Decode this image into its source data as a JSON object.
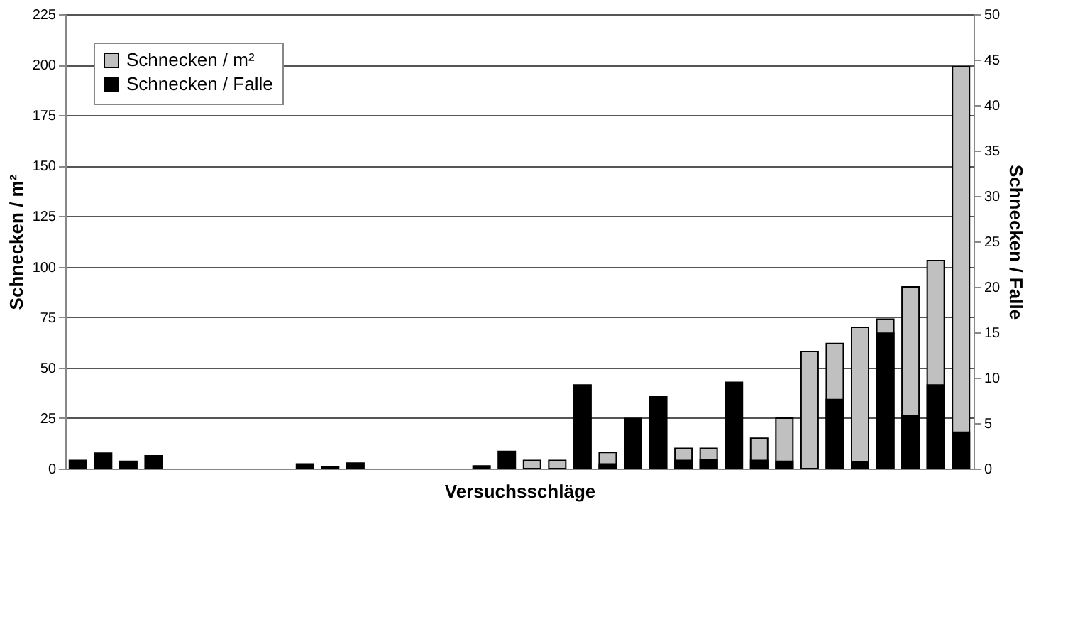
{
  "chart_data": {
    "type": "bar",
    "xlabel": "Versuchsschläge",
    "ylabel": "Schnecken / m²",
    "y2label": "Schnecken / Falle",
    "categories": [
      null,
      null,
      null,
      null,
      null,
      null,
      null,
      null,
      null,
      null,
      null,
      null,
      null,
      null,
      null,
      null,
      null,
      null,
      null,
      null,
      null,
      null,
      null,
      null,
      null,
      null,
      null,
      null,
      null,
      null,
      null,
      null,
      null,
      null,
      null,
      null
    ],
    "series": [
      {
        "name": "Schnecken / m²",
        "color": "#c0c0c0",
        "values": [
          null,
          null,
          null,
          null,
          null,
          null,
          null,
          null,
          null,
          null,
          null,
          null,
          null,
          null,
          null,
          null,
          null,
          null,
          4,
          4,
          null,
          8,
          null,
          null,
          10,
          10,
          null,
          15,
          25,
          58,
          62,
          70,
          74,
          90,
          103,
          199
        ]
      },
      {
        "name": "Schnecken / Falle",
        "color": "#000000",
        "axis": "y2",
        "values": [
          0.9,
          1.7,
          0.8,
          1.4,
          null,
          null,
          null,
          null,
          null,
          0.5,
          0.2,
          0.6,
          null,
          null,
          null,
          null,
          0.3,
          1.9,
          null,
          null,
          9.2,
          0.5,
          5.5,
          7.9,
          0.9,
          1.0,
          9.5,
          0.9,
          0.8,
          null,
          7.6,
          0.7,
          14.9,
          5.8,
          9.2,
          4.0
        ]
      }
    ],
    "ylim": [
      0,
      225
    ],
    "yticks": [
      0,
      25,
      50,
      75,
      100,
      125,
      150,
      175,
      200,
      225
    ],
    "y2lim": [
      0,
      50
    ],
    "y2ticks": [
      0,
      5,
      10,
      15,
      20,
      25,
      30,
      35,
      40,
      45,
      50
    ],
    "grid": "y",
    "legend": "top left",
    "tick_labels": "y"
  }
}
